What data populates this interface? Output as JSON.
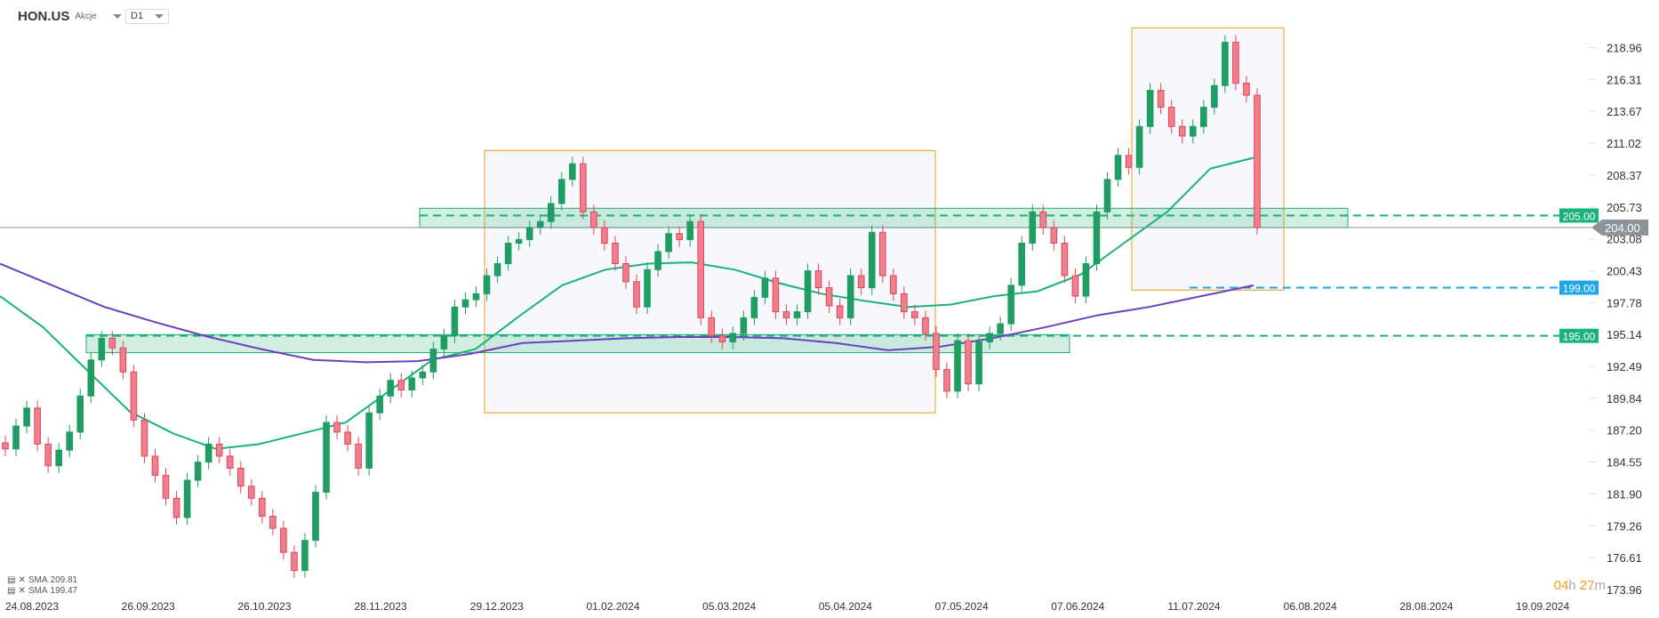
{
  "header": {
    "symbol": "HON.US",
    "type": "Akcje",
    "timeframe": "D1"
  },
  "countdown": {
    "hours": "04",
    "h": "h",
    "minutes": "27",
    "m": "m"
  },
  "legend": [
    {
      "label": "SMA",
      "value": "209.81",
      "color": "#19b37a"
    },
    {
      "label": "SMA",
      "value": "199.47",
      "color": "#6a3fc0"
    }
  ],
  "colors": {
    "up": "#1f9d62",
    "down": "#e0465a",
    "zone": "#22a870",
    "box": "#f39c12",
    "blue": "#1ea7e8",
    "last": "#8a9499"
  },
  "chart_data": {
    "type": "candlestick",
    "ylim": [
      173.96,
      220.0
    ],
    "y_ticks": [
      "218.96",
      "216.31",
      "213.67",
      "211.02",
      "208.37",
      "205.73",
      "203.08",
      "200.43",
      "197.78",
      "195.14",
      "192.49",
      "189.84",
      "187.20",
      "184.55",
      "181.90",
      "179.26",
      "176.61",
      "173.96"
    ],
    "x_ticks": [
      "24.08.2023",
      "26.09.2023",
      "26.10.2023",
      "28.11.2023",
      "29.12.2023",
      "01.02.2024",
      "05.03.2024",
      "05.04.2024",
      "07.05.2024",
      "07.06.2024",
      "11.07.2024",
      "06.08.2024",
      "28.08.2024",
      "19.09.2024"
    ],
    "closes": [
      185.6,
      187.5,
      189,
      186,
      184.2,
      185.5,
      187,
      190,
      193,
      194.8,
      194,
      192,
      188,
      185,
      183.4,
      181.5,
      179.9,
      183,
      184.5,
      186,
      185,
      184,
      182.5,
      181.5,
      180,
      179,
      177,
      175.5,
      178,
      182,
      187.8,
      187,
      186,
      184,
      188.6,
      190,
      191.3,
      190.5,
      191.5,
      192,
      193.9,
      195,
      197.4,
      198,
      198.5,
      200,
      201,
      202.7,
      203,
      204,
      204.5,
      206,
      208,
      209.3,
      205.3,
      204,
      202.7,
      201,
      199.5,
      197.4,
      200.5,
      202,
      203.5,
      203,
      204.5,
      196.5,
      195,
      194.5,
      195.2,
      196.5,
      198.2,
      199.8,
      197,
      196.5,
      197,
      200.4,
      199,
      197.5,
      196.5,
      200,
      199,
      203.6,
      200,
      198.5,
      197,
      196.5,
      195.2,
      192.2,
      190.4,
      194.6,
      191,
      194.5,
      195.2,
      196,
      199.2,
      202.7,
      205.3,
      204,
      202.7,
      200,
      198.3,
      201,
      205.3,
      208,
      210,
      209,
      212.4,
      215.4,
      214,
      212.4,
      211.6,
      212.4,
      214,
      215.8,
      219.4,
      216,
      215,
      204
    ],
    "series": [
      {
        "name": "SMA",
        "last": 209.81,
        "values": [
          198.3,
          195.7,
          192.2,
          188.7,
          186.9,
          185.6,
          186.0,
          186.9,
          187.8,
          190.4,
          193.0,
          193.9,
          196.6,
          199.2,
          200.5,
          201.0,
          201.1,
          200.5,
          199.4,
          198.5,
          197.9,
          197.4,
          197.6,
          198.3,
          198.7,
          200.1,
          202.7,
          205.3,
          208.9,
          209.8
        ]
      },
      {
        "name": "SMA",
        "last": 199.47,
        "values": [
          201.0,
          199.2,
          197.4,
          196.1,
          194.9,
          193.9,
          193.0,
          192.8,
          192.9,
          193.5,
          194.4,
          194.6,
          194.8,
          194.9,
          194.9,
          194.8,
          194.4,
          193.8,
          194.1,
          194.8,
          195.7,
          196.7,
          197.4,
          198.3,
          199.2
        ]
      }
    ],
    "zones": [
      {
        "from": 204.0,
        "to": 205.6
      },
      {
        "from": 193.6,
        "to": 195.1
      }
    ],
    "boxes": [
      {
        "high": 210.4,
        "low": 188.6
      },
      {
        "high": 220.6,
        "low": 198.8
      }
    ],
    "levels": [
      {
        "label": "205.00",
        "value": 205.0,
        "style": "green-dashed"
      },
      {
        "label": "199.00",
        "value": 199.0,
        "style": "blue-dashed"
      },
      {
        "label": "195.00",
        "value": 195.0,
        "style": "green-dashed"
      }
    ],
    "last_price": {
      "label": "204.00",
      "value": 204.0
    }
  }
}
